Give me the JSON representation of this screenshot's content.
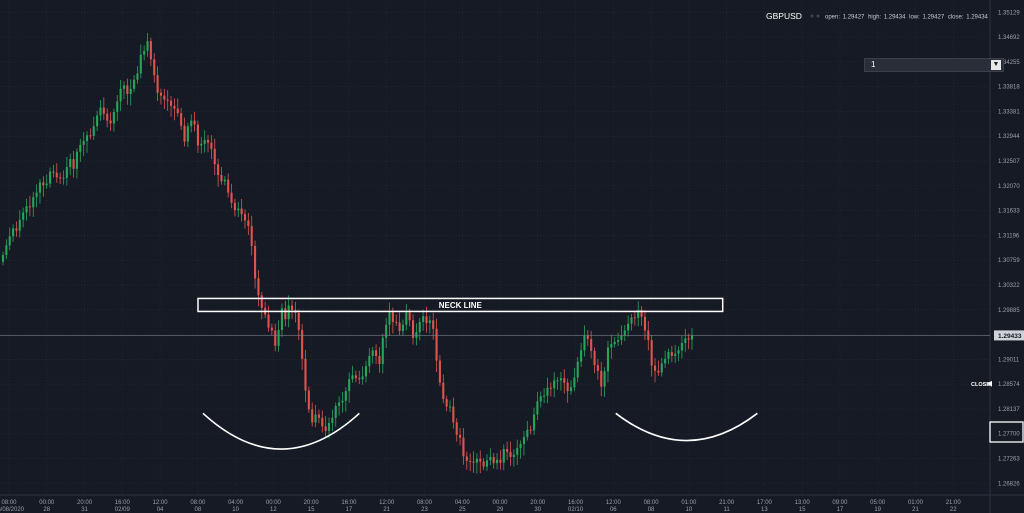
{
  "legend": {
    "symbol": "GBPUSD",
    "open_label": "open:",
    "open": "1.29427",
    "high_label": "high:",
    "high": "1.29434",
    "low_label": "low:",
    "low": "1.29427",
    "close_label": "close:",
    "close": "1.29434"
  },
  "interval": {
    "value": "1"
  },
  "colors": {
    "background": "#161a25",
    "up": "#26a65b",
    "down": "#e0544e",
    "grid": "#262b38",
    "annotation": "#ffffff"
  },
  "chart_data": {
    "type": "candlestick",
    "symbol": "GBPUSD",
    "ylim": [
      1.2662,
      1.3531
    ],
    "y_ticks": [
      "1.35129",
      "1.34692",
      "1.34255",
      "1.33818",
      "1.33381",
      "1.32944",
      "1.32507",
      "1.32070",
      "1.31633",
      "1.31196",
      "1.30759",
      "1.30322",
      "1.29885",
      "1.29448",
      "1.29011",
      "1.28574",
      "1.28137",
      "1.27700",
      "1.27263",
      "1.26826"
    ],
    "last_price_label": "1.29433",
    "last_price": 1.29433,
    "close_marker_label": "CLOSE",
    "close_marker_price": 1.2858,
    "x_ticks": [
      {
        "time": "08:00",
        "date": "26/08/2020"
      },
      {
        "time": "00:00",
        "date": "28"
      },
      {
        "time": "20:00",
        "date": "31"
      },
      {
        "time": "16:00",
        "date": "02/09"
      },
      {
        "time": "12:00",
        "date": "04"
      },
      {
        "time": "08:00",
        "date": "08"
      },
      {
        "time": "04:00",
        "date": "10"
      },
      {
        "time": "00:00",
        "date": "12"
      },
      {
        "time": "20:00",
        "date": "15"
      },
      {
        "time": "16:00",
        "date": "17"
      },
      {
        "time": "12:00",
        "date": "21"
      },
      {
        "time": "08:00",
        "date": "23"
      },
      {
        "time": "04:00",
        "date": "25"
      },
      {
        "time": "00:00",
        "date": "29"
      },
      {
        "time": "20:00",
        "date": "30"
      },
      {
        "time": "16:00",
        "date": "02/10"
      },
      {
        "time": "12:00",
        "date": "06"
      },
      {
        "time": "08:00",
        "date": "08"
      },
      {
        "time": "01:00",
        "date": "10"
      },
      {
        "time": "21:00",
        "date": "11"
      },
      {
        "time": "17:00",
        "date": "13"
      },
      {
        "time": "13:00",
        "date": "15"
      },
      {
        "time": "09:00",
        "date": "17"
      },
      {
        "time": "05:00",
        "date": "19"
      },
      {
        "time": "01:00",
        "date": "21"
      },
      {
        "time": "21:00",
        "date": "22"
      }
    ],
    "closes": [
      1.3085,
      1.3102,
      1.3118,
      1.3132,
      1.3128,
      1.3147,
      1.316,
      1.3171,
      1.3169,
      1.3187,
      1.3195,
      1.3213,
      1.3208,
      1.3211,
      1.3232,
      1.323,
      1.3222,
      1.3221,
      1.3221,
      1.324,
      1.3254,
      1.3237,
      1.3267,
      1.3279,
      1.3286,
      1.3296,
      1.3295,
      1.3312,
      1.3331,
      1.3345,
      1.3334,
      1.3322,
      1.3317,
      1.3337,
      1.3356,
      1.3378,
      1.3384,
      1.3369,
      1.3378,
      1.3394,
      1.3405,
      1.3438,
      1.3445,
      1.3462,
      1.343,
      1.3402,
      1.3371,
      1.3366,
      1.3359,
      1.3357,
      1.3348,
      1.3343,
      1.3335,
      1.3313,
      1.3285,
      1.3312,
      1.3322,
      1.3315,
      1.3278,
      1.3281,
      1.3288,
      1.3283,
      1.3272,
      1.3245,
      1.3226,
      1.3215,
      1.3218,
      1.3195,
      1.3177,
      1.3164,
      1.3167,
      1.3157,
      1.3146,
      1.3136,
      1.3101,
      1.3044,
      1.3014,
      1.2992,
      1.298,
      1.2957,
      1.2952,
      1.2925,
      1.2953,
      1.2991,
      1.2972,
      1.2996,
      1.2988,
      1.2983,
      1.2953,
      1.2902,
      1.2846,
      1.2813,
      1.279,
      1.2804,
      1.2798,
      1.2783,
      1.2775,
      1.2789,
      1.2798,
      1.2819,
      1.2825,
      1.2828,
      1.2845,
      1.2866,
      1.2873,
      1.2868,
      1.2866,
      1.2871,
      1.2889,
      1.2907,
      1.2917,
      1.2907,
      1.2893,
      1.2939,
      1.2962,
      1.2984,
      1.2967,
      1.2966,
      1.2951,
      1.2962,
      1.2984,
      1.297,
      1.2939,
      1.2949,
      1.2967,
      1.2977,
      1.2965,
      1.297,
      1.2955,
      1.2899,
      1.286,
      1.2831,
      1.2818,
      1.2818,
      1.279,
      1.2768,
      1.2763,
      1.273,
      1.2722,
      1.2721,
      1.2719,
      1.2726,
      1.2721,
      1.2712,
      1.2723,
      1.2729,
      1.2718,
      1.2724,
      1.2719,
      1.2743,
      1.2738,
      1.2729,
      1.2733,
      1.2745,
      1.2752,
      1.2764,
      1.2777,
      1.2776,
      1.2804,
      1.2827,
      1.2836,
      1.2837,
      1.2851,
      1.285,
      1.2864,
      1.2864,
      1.2868,
      1.286,
      1.2845,
      1.2852,
      1.2869,
      1.2897,
      1.2917,
      1.2943,
      1.2937,
      1.2916,
      1.2891,
      1.2881,
      1.2853,
      1.288,
      1.2922,
      1.2928,
      1.2932,
      1.2935,
      1.2943,
      1.2952,
      1.2964,
      1.2975,
      1.2974,
      1.2988,
      1.2976,
      1.2952,
      1.2935,
      1.289,
      1.2881,
      1.2878,
      1.2894,
      1.2902,
      1.2914,
      1.2907,
      1.2911,
      1.2917,
      1.293,
      1.2938,
      1.2936,
      1.2943
    ]
  },
  "annotations": {
    "neck_line_label": "NECK LINE",
    "neck_line_price": 1.2997,
    "neck_line_range": [
      0.2,
      0.73
    ],
    "arcs": [
      {
        "range": [
          0.205,
          0.363
        ],
        "top": 1.2806,
        "bottom": 1.2743
      },
      {
        "range": [
          0.622,
          0.765
        ],
        "top": 1.2806,
        "bottom": 1.2758
      }
    ]
  }
}
